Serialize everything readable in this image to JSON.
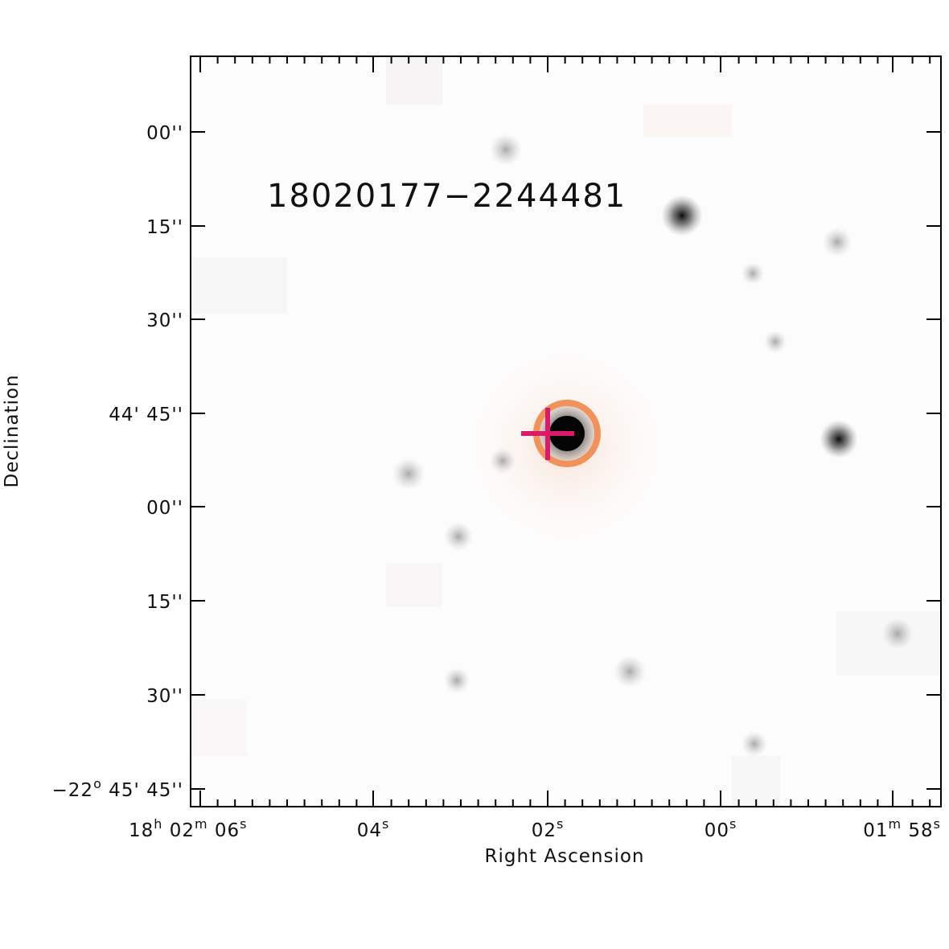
{
  "image": {
    "title": "18020177−2244481",
    "title_color": "#1e5e3a",
    "circle_color": "#f0925a",
    "cross_color": "#d81b6a",
    "colors": {
      "frame": "#000000",
      "star": "#000000"
    }
  },
  "axes": {
    "ylabel": "Declination",
    "xlabel": "Right Ascension",
    "y_ticks": [
      {
        "text": "00''"
      },
      {
        "text": "15''"
      },
      {
        "text": "30''"
      },
      {
        "text": "44' 45''"
      },
      {
        "text": "00''"
      },
      {
        "text": "15''"
      },
      {
        "text": "30''"
      },
      {
        "text": "45' 45''",
        "prefix": "−22",
        "sup": "o"
      }
    ],
    "x_ticks": [
      {
        "parts": [
          {
            "t": "18"
          },
          {
            "sup": "h"
          },
          {
            "t": " 02"
          },
          {
            "sup": "m"
          },
          {
            "t": " 06"
          },
          {
            "sup": "s"
          }
        ]
      },
      {
        "parts": [
          {
            "t": "04"
          },
          {
            "sup": "s"
          }
        ]
      },
      {
        "parts": [
          {
            "t": "02"
          },
          {
            "sup": "s"
          }
        ]
      },
      {
        "parts": [
          {
            "t": "00"
          },
          {
            "sup": "s"
          }
        ]
      },
      {
        "parts": [
          {
            "t": "01"
          },
          {
            "sup": "m"
          },
          {
            "t": " 58"
          },
          {
            "sup": "s"
          }
        ]
      }
    ]
  },
  "stars": [
    {
      "name": "target-star",
      "size": "large"
    },
    {
      "name": "star",
      "size": "small"
    },
    {
      "name": "star",
      "size": "medium"
    },
    {
      "name": "star",
      "size": "small"
    },
    {
      "name": "star",
      "size": "small"
    },
    {
      "name": "star",
      "size": "medium"
    },
    {
      "name": "star",
      "size": "small"
    },
    {
      "name": "star",
      "size": "small"
    },
    {
      "name": "star",
      "size": "small"
    },
    {
      "name": "star",
      "size": "small"
    },
    {
      "name": "star",
      "size": "small"
    },
    {
      "name": "star",
      "size": "small"
    },
    {
      "name": "star",
      "size": "small"
    },
    {
      "name": "star",
      "size": "small"
    }
  ]
}
